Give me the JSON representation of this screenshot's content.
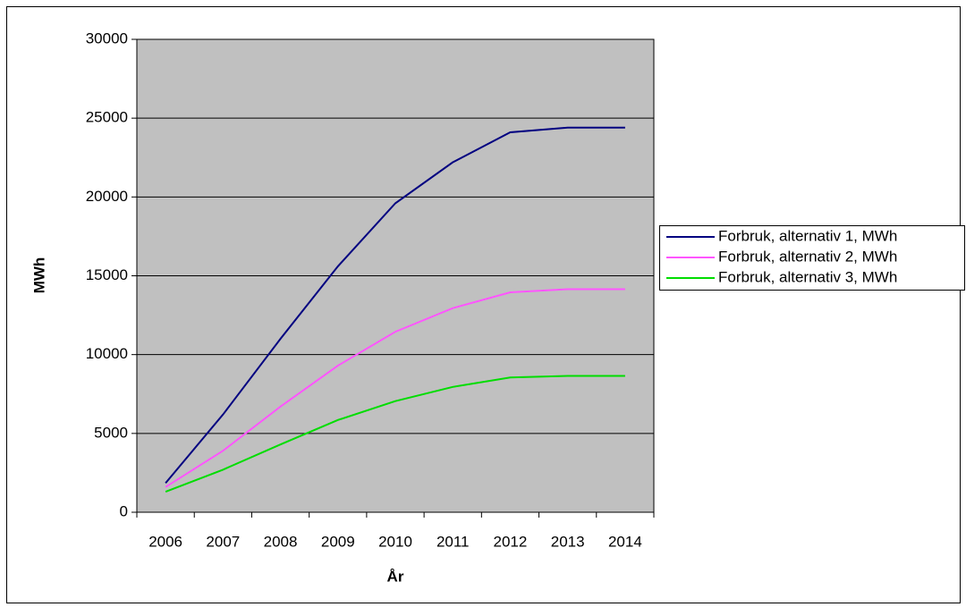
{
  "chart_data": {
    "type": "line",
    "x_label": "År",
    "y_label": "MWh",
    "categories": [
      "2006",
      "2007",
      "2008",
      "2009",
      "2010",
      "2011",
      "2012",
      "2013",
      "2014"
    ],
    "series": [
      {
        "name": "Forbruk, alternativ 1, MWh",
        "color": "#000080",
        "values": [
          1850,
          6200,
          11000,
          15600,
          19600,
          22200,
          24100,
          24400,
          24400
        ]
      },
      {
        "name": "Forbruk, alternativ 2, MWh",
        "color": "#ff55ff",
        "values": [
          1600,
          3900,
          6700,
          9300,
          11450,
          12950,
          13950,
          14150,
          14150
        ]
      },
      {
        "name": "Forbruk, alternativ 3, MWh",
        "color": "#00dd00",
        "values": [
          1300,
          2700,
          4300,
          5850,
          7050,
          7950,
          8550,
          8650,
          8650
        ]
      }
    ],
    "ylim": [
      0,
      30000
    ],
    "yticks": [
      0,
      5000,
      10000,
      15000,
      20000,
      25000,
      30000
    ],
    "grid": true,
    "legend": "right",
    "plot_background": "#c0c0c0"
  }
}
